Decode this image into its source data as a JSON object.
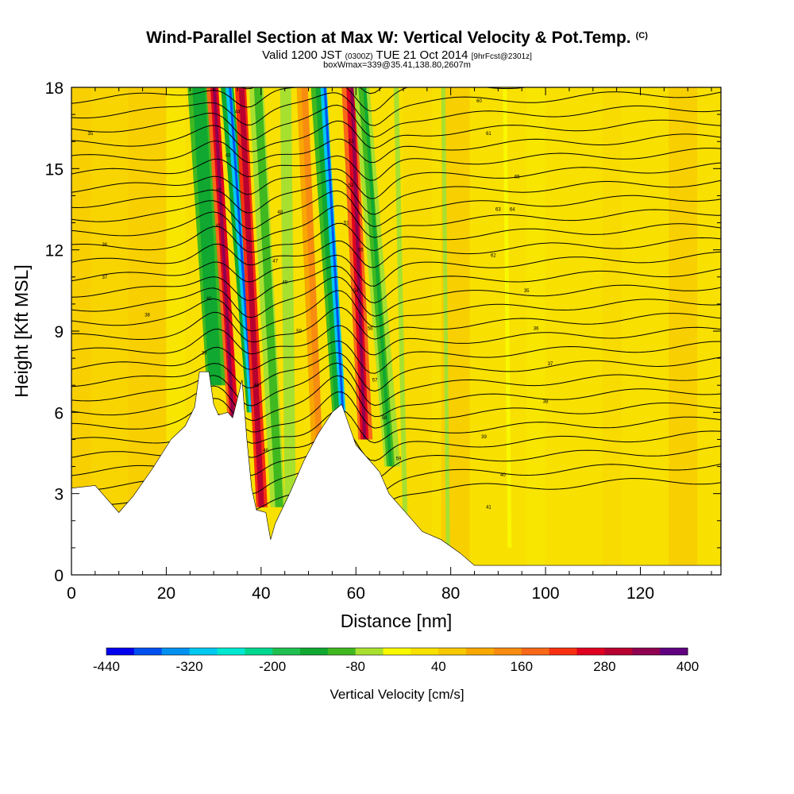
{
  "header": {
    "title": "Wind-Parallel Section at Max W: Vertical Velocity & Pot.Temp.",
    "copyright": "(C)",
    "valid_prefix": "Valid 1200 JST",
    "utc_time": "(0300Z)",
    "valid_date": "TUE 21 Oct 2014",
    "forecast": "[9hrFcst@2301z]",
    "box_info": "boxWmax=339@35.41,138.80,2607m"
  },
  "chart_data": {
    "type": "heatmap",
    "xlabel": "Distance [nm]",
    "ylabel": "Height [Kft MSL]",
    "xlim": [
      0,
      137
    ],
    "ylim": [
      0,
      18
    ],
    "x_ticks": [
      0,
      20,
      40,
      60,
      80,
      100,
      120
    ],
    "y_ticks": [
      0,
      3,
      6,
      9,
      12,
      15,
      18
    ],
    "colorbar": {
      "label": "Vertical Velocity [cm/s]",
      "min": -440,
      "max": 400,
      "step": 40,
      "tick_values": [
        -440,
        -320,
        -200,
        -80,
        40,
        160,
        280,
        400
      ],
      "colors": [
        "#0000ee",
        "#0050f0",
        "#0090f0",
        "#00c8f0",
        "#00e8d0",
        "#00d890",
        "#20c050",
        "#10a830",
        "#40b820",
        "#a8e030",
        "#f8f800",
        "#f8e000",
        "#f8c800",
        "#f8a800",
        "#f88c10",
        "#f86818",
        "#f83010",
        "#e00020",
        "#b80030",
        "#900050",
        "#600080"
      ]
    },
    "updraft_peak": {
      "value_cm_s": 339,
      "lat": 35.41,
      "lon": 138.8,
      "height_m": 2607
    },
    "terrain_profile_kft": [
      [
        0,
        3.2
      ],
      [
        5,
        3.3
      ],
      [
        10,
        2.3
      ],
      [
        13,
        2.9
      ],
      [
        17,
        3.9
      ],
      [
        21,
        5
      ],
      [
        24,
        5.5
      ],
      [
        26,
        6.2
      ],
      [
        27,
        7.5
      ],
      [
        29,
        7.5
      ],
      [
        30,
        6.3
      ],
      [
        31,
        5.9
      ],
      [
        33,
        6.0
      ],
      [
        34,
        5.8
      ],
      [
        35,
        6.5
      ],
      [
        36,
        7.2
      ],
      [
        37,
        5.0
      ],
      [
        38,
        3.2
      ],
      [
        39,
        2.4
      ],
      [
        41,
        2.3
      ],
      [
        42,
        1.3
      ],
      [
        43,
        1.9
      ],
      [
        46,
        3.0
      ],
      [
        49,
        4.2
      ],
      [
        52,
        5.2
      ],
      [
        55,
        6.0
      ],
      [
        57,
        6.3
      ],
      [
        58,
        5.8
      ],
      [
        60,
        4.8
      ],
      [
        63,
        4.2
      ],
      [
        65,
        3.8
      ],
      [
        67,
        3.0
      ],
      [
        70,
        2.4
      ],
      [
        74,
        1.6
      ],
      [
        78,
        1.3
      ],
      [
        82,
        0.8
      ],
      [
        85,
        0.35
      ],
      [
        90,
        0.35
      ],
      [
        137,
        0.35
      ]
    ],
    "theta_contour_labels": [
      "35",
      "36",
      "37",
      "38",
      "39",
      "40",
      "41",
      "42",
      "43",
      "44",
      "45",
      "46",
      "47",
      "48",
      "49",
      "50",
      "51",
      "52",
      "53",
      "54",
      "55",
      "56",
      "57",
      "58",
      "59",
      "60",
      "61",
      "62",
      "63",
      "64",
      "65"
    ]
  }
}
